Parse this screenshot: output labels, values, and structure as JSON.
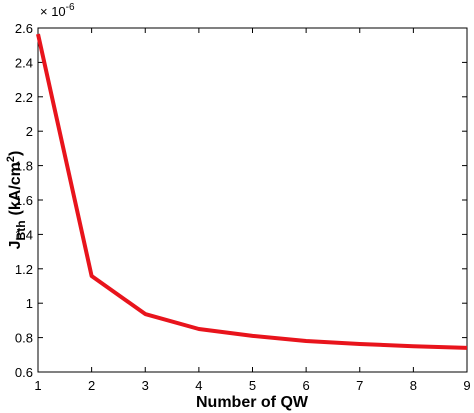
{
  "chart_data": {
    "type": "line",
    "x": [
      1,
      2,
      3,
      4,
      5,
      6,
      7,
      8,
      9
    ],
    "series": [
      {
        "color": "#e8141c",
        "values": [
          2.565,
          1.158,
          0.937,
          0.85,
          0.81,
          0.78,
          0.763,
          0.75,
          0.74
        ]
      }
    ],
    "xlim": [
      1,
      9
    ],
    "xticks": [
      1,
      2,
      3,
      4,
      5,
      6,
      7,
      8,
      9
    ],
    "ylim": [
      0.6,
      2.6
    ],
    "yticks": [
      0.6,
      0.8,
      1,
      1.2,
      1.4,
      1.6,
      1.8,
      2,
      2.2,
      2.4,
      2.6
    ],
    "y_multiplier": {
      "base": "× 10",
      "exponent": "-6"
    },
    "xlabel": "Number of QW",
    "ylabel": {
      "main": "J",
      "subscript": "Bth",
      "unit": "(kA/cm",
      "superscript": "2",
      "close": ")"
    }
  }
}
